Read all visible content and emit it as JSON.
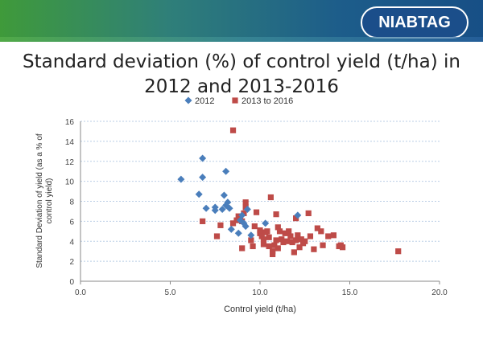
{
  "header": {
    "logo_text": "NIABTAG"
  },
  "chart_data": {
    "type": "scatter",
    "title_line1": "Standard deviation (%) of control yield (t/ha) in",
    "title_line2": "2012 and 2013-2016",
    "xlabel": "Control yield (t/ha)",
    "ylabel_line1": "Standard Deviation of yield (as a % of",
    "ylabel_line2": "control yield)",
    "xlim": [
      0,
      20
    ],
    "ylim": [
      0,
      16
    ],
    "xticks": [
      0,
      5,
      10,
      15,
      20
    ],
    "xtick_labels": [
      "0.0",
      "5.0",
      "10.0",
      "15.0",
      "20.0"
    ],
    "yticks": [
      0,
      2,
      4,
      6,
      8,
      10,
      12,
      14,
      16
    ],
    "ytick_labels": [
      "0",
      "2",
      "4",
      "6",
      "8",
      "10",
      "12",
      "14",
      "16"
    ],
    "grid": "horizontal",
    "legend_position": "top",
    "series": [
      {
        "name": "2012",
        "marker": "diamond",
        "color": "#4a7ebb",
        "points": [
          [
            5.6,
            10.2
          ],
          [
            6.6,
            8.7
          ],
          [
            6.8,
            12.3
          ],
          [
            6.8,
            10.4
          ],
          [
            7.0,
            7.3
          ],
          [
            7.5,
            7.4
          ],
          [
            7.5,
            7.1
          ],
          [
            7.9,
            7.2
          ],
          [
            8.0,
            8.6
          ],
          [
            8.1,
            11.0
          ],
          [
            8.1,
            7.6
          ],
          [
            8.2,
            7.9
          ],
          [
            8.3,
            7.3
          ],
          [
            8.4,
            5.2
          ],
          [
            8.8,
            4.8
          ],
          [
            9.1,
            5.8
          ],
          [
            9.2,
            5.5
          ],
          [
            9.3,
            7.2
          ],
          [
            9.5,
            4.6
          ],
          [
            10.3,
            5.8
          ],
          [
            12.1,
            6.6
          ],
          [
            8.9,
            6.1
          ],
          [
            9.0,
            6.6
          ]
        ]
      },
      {
        "name": "2013 to 2016",
        "marker": "square",
        "color": "#be4b48",
        "points": [
          [
            8.5,
            15.1
          ],
          [
            6.8,
            6.0
          ],
          [
            7.6,
            4.5
          ],
          [
            7.8,
            5.6
          ],
          [
            8.5,
            5.8
          ],
          [
            8.7,
            6.1
          ],
          [
            8.8,
            6.5
          ],
          [
            8.9,
            6.3
          ],
          [
            9.0,
            6.0
          ],
          [
            9.1,
            6.8
          ],
          [
            9.2,
            7.9
          ],
          [
            9.2,
            7.4
          ],
          [
            9.0,
            3.3
          ],
          [
            9.5,
            4.1
          ],
          [
            9.6,
            3.5
          ],
          [
            9.8,
            6.9
          ],
          [
            10.0,
            5.1
          ],
          [
            10.0,
            4.8
          ],
          [
            10.1,
            4.5
          ],
          [
            10.2,
            4.2
          ],
          [
            10.3,
            4.9
          ],
          [
            10.4,
            5.0
          ],
          [
            10.5,
            4.4
          ],
          [
            10.5,
            3.5
          ],
          [
            10.6,
            8.4
          ],
          [
            10.7,
            3.0
          ],
          [
            10.7,
            2.7
          ],
          [
            10.8,
            3.6
          ],
          [
            10.9,
            6.7
          ],
          [
            11.0,
            5.4
          ],
          [
            11.1,
            5.0
          ],
          [
            11.2,
            4.2
          ],
          [
            11.3,
            3.9
          ],
          [
            11.4,
            4.8
          ],
          [
            11.5,
            4.0
          ],
          [
            11.6,
            5.0
          ],
          [
            11.7,
            4.5
          ],
          [
            11.8,
            3.9
          ],
          [
            11.9,
            2.9
          ],
          [
            12.0,
            6.3
          ],
          [
            12.0,
            4.1
          ],
          [
            12.1,
            4.6
          ],
          [
            12.2,
            3.4
          ],
          [
            12.3,
            4.2
          ],
          [
            12.5,
            4.0
          ],
          [
            12.7,
            6.8
          ],
          [
            12.8,
            4.5
          ],
          [
            13.0,
            3.2
          ],
          [
            13.2,
            5.3
          ],
          [
            13.4,
            5.0
          ],
          [
            13.5,
            3.6
          ],
          [
            13.8,
            4.5
          ],
          [
            14.1,
            4.6
          ],
          [
            14.4,
            3.5
          ],
          [
            14.5,
            3.6
          ],
          [
            14.6,
            3.4
          ],
          [
            17.7,
            3.0
          ],
          [
            10.2,
            3.7
          ],
          [
            11.0,
            3.3
          ],
          [
            9.7,
            5.5
          ],
          [
            10.9,
            4.1
          ],
          [
            12.4,
            3.8
          ]
        ]
      }
    ]
  }
}
